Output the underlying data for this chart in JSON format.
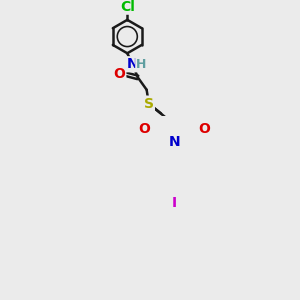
{
  "background_color": "#ebebeb",
  "line_color": "#1a1a1a",
  "bond_width": 1.8,
  "atom_colors": {
    "C": "#1a1a1a",
    "N": "#0000cc",
    "O": "#dd0000",
    "S": "#aaaa00",
    "Cl": "#00bb00",
    "I": "#cc00cc",
    "H": "#5f9ea0"
  },
  "font_size": 10
}
